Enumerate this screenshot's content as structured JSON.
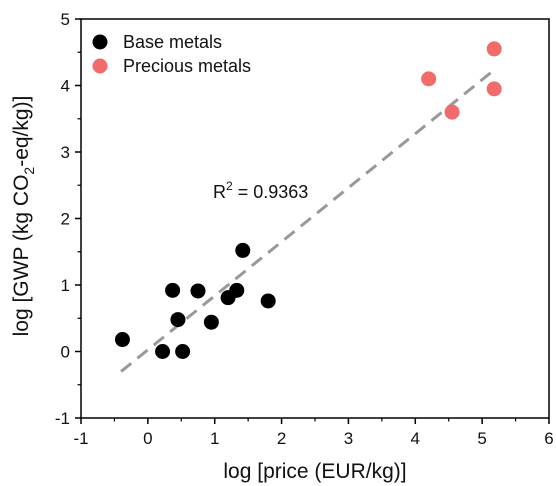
{
  "chart_data": {
    "type": "scatter",
    "xlabel": "log [price (EUR/kg)]",
    "ylabel_parts": {
      "pre": "log [GWP (kg CO",
      "sub": "2",
      "post": "-eq/kg)]"
    },
    "xlim": [
      -1,
      6
    ],
    "ylim": [
      -1,
      5
    ],
    "xticks": [
      -1,
      0,
      1,
      2,
      3,
      4,
      5,
      6
    ],
    "yticks": [
      -1,
      0,
      1,
      2,
      3,
      4,
      5
    ],
    "grid": false,
    "legend_position": "top-left",
    "series": [
      {
        "name": "Base metals",
        "color": "#000000",
        "points": [
          {
            "x": -0.38,
            "y": 0.18
          },
          {
            "x": 0.22,
            "y": 0.0
          },
          {
            "x": 0.52,
            "y": 0.0
          },
          {
            "x": 0.37,
            "y": 0.92
          },
          {
            "x": 0.45,
            "y": 0.48
          },
          {
            "x": 0.75,
            "y": 0.91
          },
          {
            "x": 0.95,
            "y": 0.44
          },
          {
            "x": 1.2,
            "y": 0.81
          },
          {
            "x": 1.33,
            "y": 0.92
          },
          {
            "x": 1.42,
            "y": 1.52
          },
          {
            "x": 1.8,
            "y": 0.76
          }
        ]
      },
      {
        "name": "Precious metals",
        "color": "#f26b6b",
        "points": [
          {
            "x": 4.2,
            "y": 4.1
          },
          {
            "x": 4.55,
            "y": 3.6
          },
          {
            "x": 5.18,
            "y": 4.55
          },
          {
            "x": 5.18,
            "y": 3.95
          }
        ]
      }
    ],
    "fit_line": {
      "x": [
        -0.4,
        5.2
      ],
      "y": [
        -0.3,
        4.25
      ],
      "color": "#999999",
      "style": "dashed"
    },
    "annotation": {
      "text_pre": "R",
      "text_sup": "2",
      "text_post": " = 0.9363"
    }
  }
}
